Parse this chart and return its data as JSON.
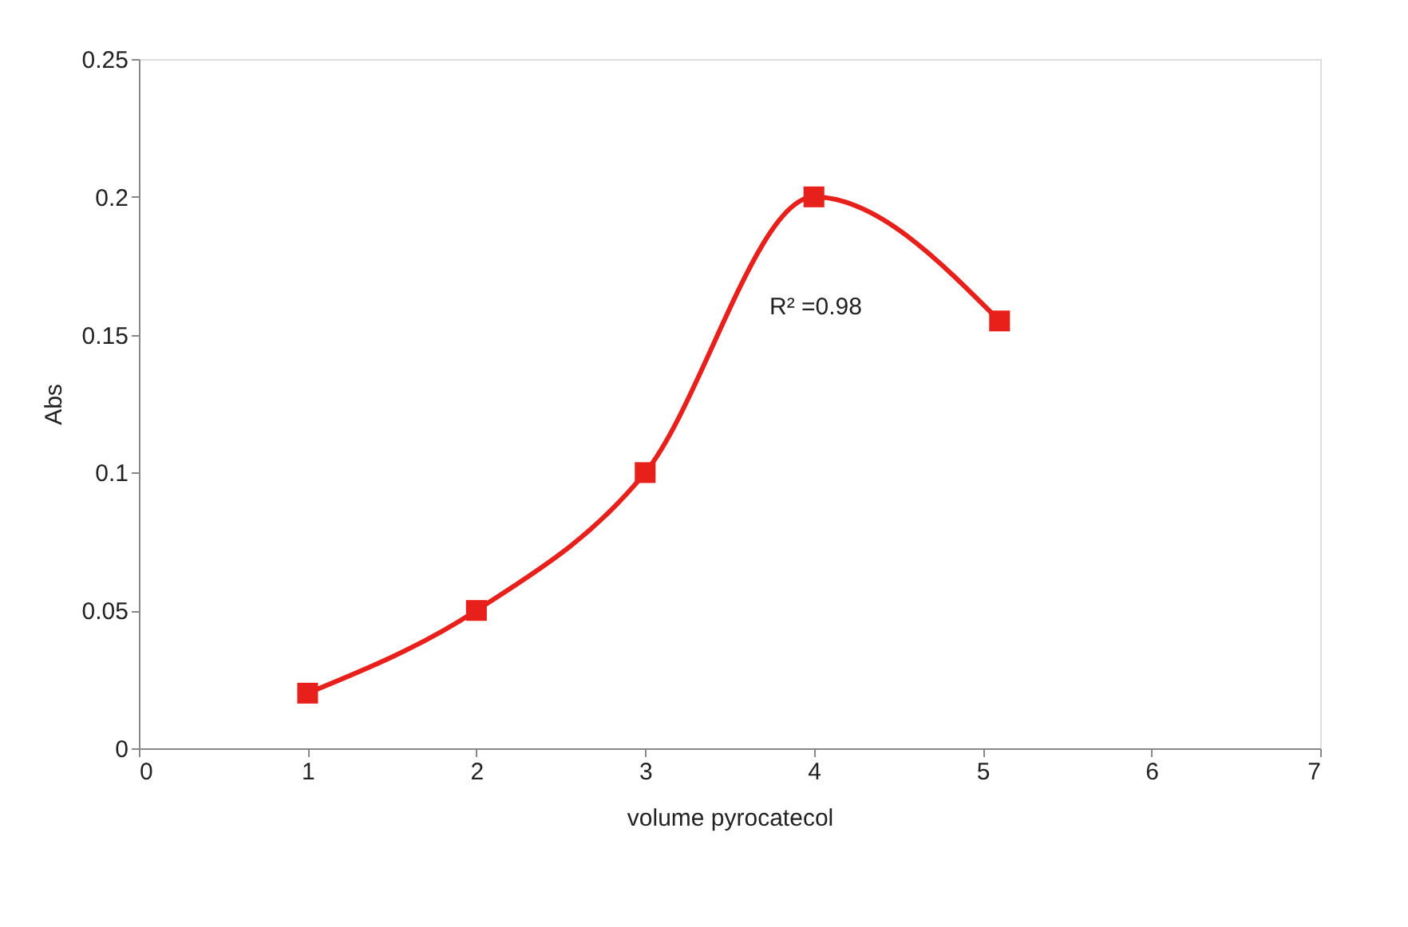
{
  "chart_data": {
    "type": "line",
    "xlabel": "volume pyrocatecol",
    "ylabel": "Abs",
    "x": [
      1,
      2,
      3,
      4,
      5.1
    ],
    "series": [
      {
        "color": "#e8201c",
        "values": [
          0.02,
          0.05,
          0.1,
          0.2,
          0.155
        ]
      }
    ],
    "xlim": [
      0,
      7
    ],
    "xticks": [
      0,
      1,
      2,
      3,
      4,
      5,
      6,
      7
    ],
    "ylim": [
      0,
      0.25
    ],
    "yticks": [
      0,
      0.05,
      0.1,
      0.15,
      0.2,
      0.25
    ],
    "annotations": [
      "R² =0.98"
    ],
    "grid": false,
    "marker": "square",
    "line_style": "solid"
  }
}
